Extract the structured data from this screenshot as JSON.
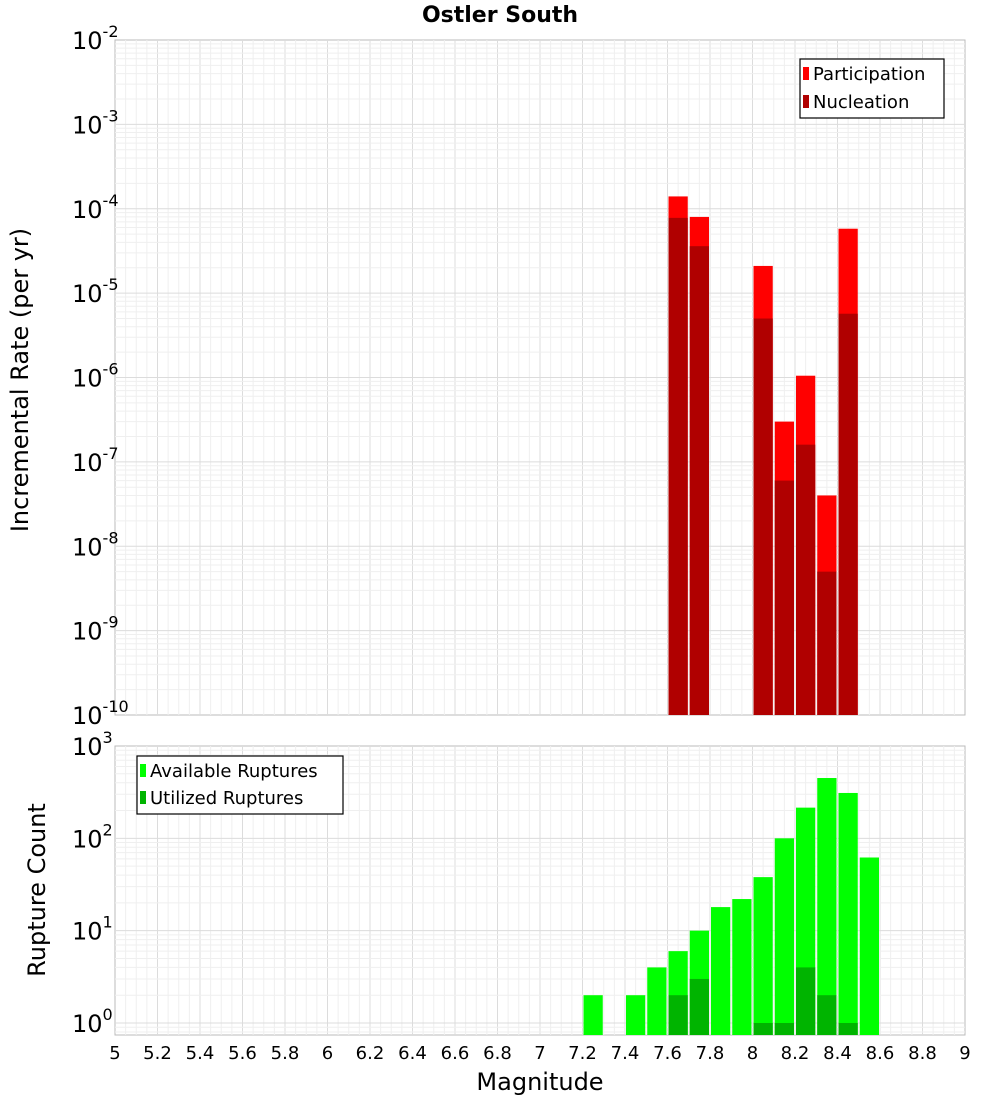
{
  "title": "Ostler South",
  "chart_data": [
    {
      "type": "bar",
      "scale": "log",
      "ylabel": "Incremental Rate (per yr)",
      "xlabel": "",
      "xlim": [
        5,
        9
      ],
      "ylim_exp": [
        -10,
        -2
      ],
      "y_tick_labels": [
        {
          "base": "10",
          "exp": "-10"
        },
        {
          "base": "10",
          "exp": "-9"
        },
        {
          "base": "10",
          "exp": "-8"
        },
        {
          "base": "10",
          "exp": "-7"
        },
        {
          "base": "10",
          "exp": "-6"
        },
        {
          "base": "10",
          "exp": "-5"
        },
        {
          "base": "10",
          "exp": "-4"
        },
        {
          "base": "10",
          "exp": "-3"
        },
        {
          "base": "10",
          "exp": "-2"
        }
      ],
      "legend_position": "top-right",
      "series": [
        {
          "name": "Participation",
          "color": "#ff0000",
          "points": [
            {
              "x": 7.65,
              "y": 0.00014
            },
            {
              "x": 7.75,
              "y": 8e-05
            },
            {
              "x": 8.05,
              "y": 2.1e-05
            },
            {
              "x": 8.15,
              "y": 3e-07
            },
            {
              "x": 8.25,
              "y": 1.05e-06
            },
            {
              "x": 8.35,
              "y": 4e-08
            },
            {
              "x": 8.45,
              "y": 5.8e-05
            }
          ]
        },
        {
          "name": "Nucleation",
          "color": "#b00000",
          "points": [
            {
              "x": 7.65,
              "y": 7.8e-05
            },
            {
              "x": 7.75,
              "y": 3.6e-05
            },
            {
              "x": 8.05,
              "y": 5e-06
            },
            {
              "x": 8.15,
              "y": 6e-08
            },
            {
              "x": 8.25,
              "y": 1.6e-07
            },
            {
              "x": 8.35,
              "y": 5e-09
            },
            {
              "x": 8.45,
              "y": 5.7e-06
            }
          ]
        }
      ]
    },
    {
      "type": "bar",
      "scale": "log",
      "ylabel": "Rupture Count",
      "xlabel": "Magnitude",
      "xlim": [
        5,
        9
      ],
      "ylim_exp": [
        -0.13,
        3
      ],
      "y_tick_labels": [
        {
          "base": "10",
          "exp": "0"
        },
        {
          "base": "10",
          "exp": "1"
        },
        {
          "base": "10",
          "exp": "2"
        },
        {
          "base": "10",
          "exp": "3"
        }
      ],
      "x_tick_labels": [
        "5",
        "5.2",
        "5.4",
        "5.6",
        "5.8",
        "6",
        "6.2",
        "6.4",
        "6.6",
        "6.8",
        "7",
        "7.2",
        "7.4",
        "7.6",
        "7.8",
        "8",
        "8.2",
        "8.4",
        "8.6",
        "8.8",
        "9"
      ],
      "legend_position": "top-left",
      "series": [
        {
          "name": "Available Ruptures",
          "color": "#00ff00",
          "points": [
            {
              "x": 7.25,
              "y": 2
            },
            {
              "x": 7.45,
              "y": 2
            },
            {
              "x": 7.55,
              "y": 4
            },
            {
              "x": 7.65,
              "y": 6
            },
            {
              "x": 7.75,
              "y": 10
            },
            {
              "x": 7.85,
              "y": 18
            },
            {
              "x": 7.95,
              "y": 22
            },
            {
              "x": 8.05,
              "y": 38
            },
            {
              "x": 8.15,
              "y": 100
            },
            {
              "x": 8.25,
              "y": 215
            },
            {
              "x": 8.35,
              "y": 450
            },
            {
              "x": 8.45,
              "y": 310
            },
            {
              "x": 8.55,
              "y": 62
            }
          ]
        },
        {
          "name": "Utilized Ruptures",
          "color": "#00b400",
          "points": [
            {
              "x": 7.65,
              "y": 2
            },
            {
              "x": 7.75,
              "y": 3
            },
            {
              "x": 8.05,
              "y": 1
            },
            {
              "x": 8.15,
              "y": 1
            },
            {
              "x": 8.25,
              "y": 4
            },
            {
              "x": 8.35,
              "y": 2
            },
            {
              "x": 8.45,
              "y": 1
            }
          ]
        }
      ]
    }
  ]
}
